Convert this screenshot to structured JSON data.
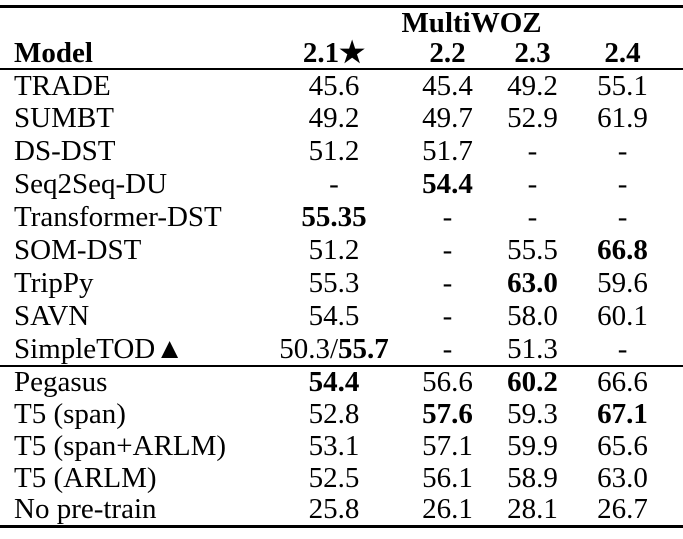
{
  "table": {
    "group_header": {
      "label": "MultiWOZ"
    },
    "columns": [
      {
        "label": "Model"
      },
      {
        "label": "2.1★"
      },
      {
        "label": "2.2"
      },
      {
        "label": "2.3"
      },
      {
        "label": "2.4"
      }
    ],
    "groups": [
      {
        "name": "baseline-models",
        "rows": [
          {
            "cells": [
              [
                {
                  "text": "TRADE"
                }
              ],
              [
                {
                  "text": "45.6"
                }
              ],
              [
                {
                  "text": "45.4"
                }
              ],
              [
                {
                  "text": "49.2"
                }
              ],
              [
                {
                  "text": "55.1"
                }
              ]
            ]
          },
          {
            "cells": [
              [
                {
                  "text": "SUMBT"
                }
              ],
              [
                {
                  "text": "49.2"
                }
              ],
              [
                {
                  "text": "49.7"
                }
              ],
              [
                {
                  "text": "52.9"
                }
              ],
              [
                {
                  "text": "61.9"
                }
              ]
            ]
          },
          {
            "cells": [
              [
                {
                  "text": "DS-DST"
                }
              ],
              [
                {
                  "text": "51.2"
                }
              ],
              [
                {
                  "text": "51.7"
                }
              ],
              [
                {
                  "text": "-"
                }
              ],
              [
                {
                  "text": "-"
                }
              ]
            ]
          },
          {
            "cells": [
              [
                {
                  "text": "Seq2Seq-DU"
                }
              ],
              [
                {
                  "text": "-"
                }
              ],
              [
                {
                  "text": "54.4",
                  "bold": true
                }
              ],
              [
                {
                  "text": "-"
                }
              ],
              [
                {
                  "text": "-"
                }
              ]
            ]
          },
          {
            "cells": [
              [
                {
                  "text": "Transformer-DST"
                }
              ],
              [
                {
                  "text": "55.35",
                  "bold": true
                }
              ],
              [
                {
                  "text": "-"
                }
              ],
              [
                {
                  "text": "-"
                }
              ],
              [
                {
                  "text": "-"
                }
              ]
            ]
          },
          {
            "cells": [
              [
                {
                  "text": "SOM-DST"
                }
              ],
              [
                {
                  "text": "51.2"
                }
              ],
              [
                {
                  "text": "-"
                }
              ],
              [
                {
                  "text": "55.5"
                }
              ],
              [
                {
                  "text": "66.8",
                  "bold": true
                }
              ]
            ]
          },
          {
            "cells": [
              [
                {
                  "text": "TripPy"
                }
              ],
              [
                {
                  "text": "55.3"
                }
              ],
              [
                {
                  "text": "-"
                }
              ],
              [
                {
                  "text": "63.0",
                  "bold": true
                }
              ],
              [
                {
                  "text": "59.6"
                }
              ]
            ]
          },
          {
            "cells": [
              [
                {
                  "text": "SAVN"
                }
              ],
              [
                {
                  "text": "54.5"
                }
              ],
              [
                {
                  "text": "-"
                }
              ],
              [
                {
                  "text": "58.0"
                }
              ],
              [
                {
                  "text": "60.1"
                }
              ]
            ]
          },
          {
            "cells": [
              [
                {
                  "text": "SimpleTOD▲"
                }
              ],
              [
                {
                  "text": "50.3/"
                },
                {
                  "text": "55.7",
                  "bold": true
                }
              ],
              [
                {
                  "text": "-"
                }
              ],
              [
                {
                  "text": "51.3"
                }
              ],
              [
                {
                  "text": "-"
                }
              ]
            ]
          }
        ]
      },
      {
        "name": "pretrain-variant-models",
        "rows": [
          {
            "cells": [
              [
                {
                  "text": "Pegasus"
                }
              ],
              [
                {
                  "text": "54.4",
                  "bold": true
                }
              ],
              [
                {
                  "text": "56.6"
                }
              ],
              [
                {
                  "text": "60.2",
                  "bold": true
                }
              ],
              [
                {
                  "text": "66.6"
                }
              ]
            ]
          },
          {
            "cells": [
              [
                {
                  "text": "T5 (span)"
                }
              ],
              [
                {
                  "text": "52.8"
                }
              ],
              [
                {
                  "text": "57.6",
                  "bold": true
                }
              ],
              [
                {
                  "text": "59.3"
                }
              ],
              [
                {
                  "text": "67.1",
                  "bold": true
                }
              ]
            ]
          },
          {
            "cells": [
              [
                {
                  "text": "T5 (span+ARLM)"
                }
              ],
              [
                {
                  "text": "53.1"
                }
              ],
              [
                {
                  "text": "57.1"
                }
              ],
              [
                {
                  "text": "59.9"
                }
              ],
              [
                {
                  "text": "65.6"
                }
              ]
            ]
          },
          {
            "cells": [
              [
                {
                  "text": "T5 (ARLM)"
                }
              ],
              [
                {
                  "text": "52.5"
                }
              ],
              [
                {
                  "text": "56.1"
                }
              ],
              [
                {
                  "text": "58.9"
                }
              ],
              [
                {
                  "text": "63.0"
                }
              ]
            ]
          },
          {
            "cells": [
              [
                {
                  "text": "No pre-train"
                }
              ],
              [
                {
                  "text": "25.8"
                }
              ],
              [
                {
                  "text": "26.1"
                }
              ],
              [
                {
                  "text": "28.1"
                }
              ],
              [
                {
                  "text": "26.7"
                }
              ]
            ]
          }
        ]
      }
    ]
  }
}
